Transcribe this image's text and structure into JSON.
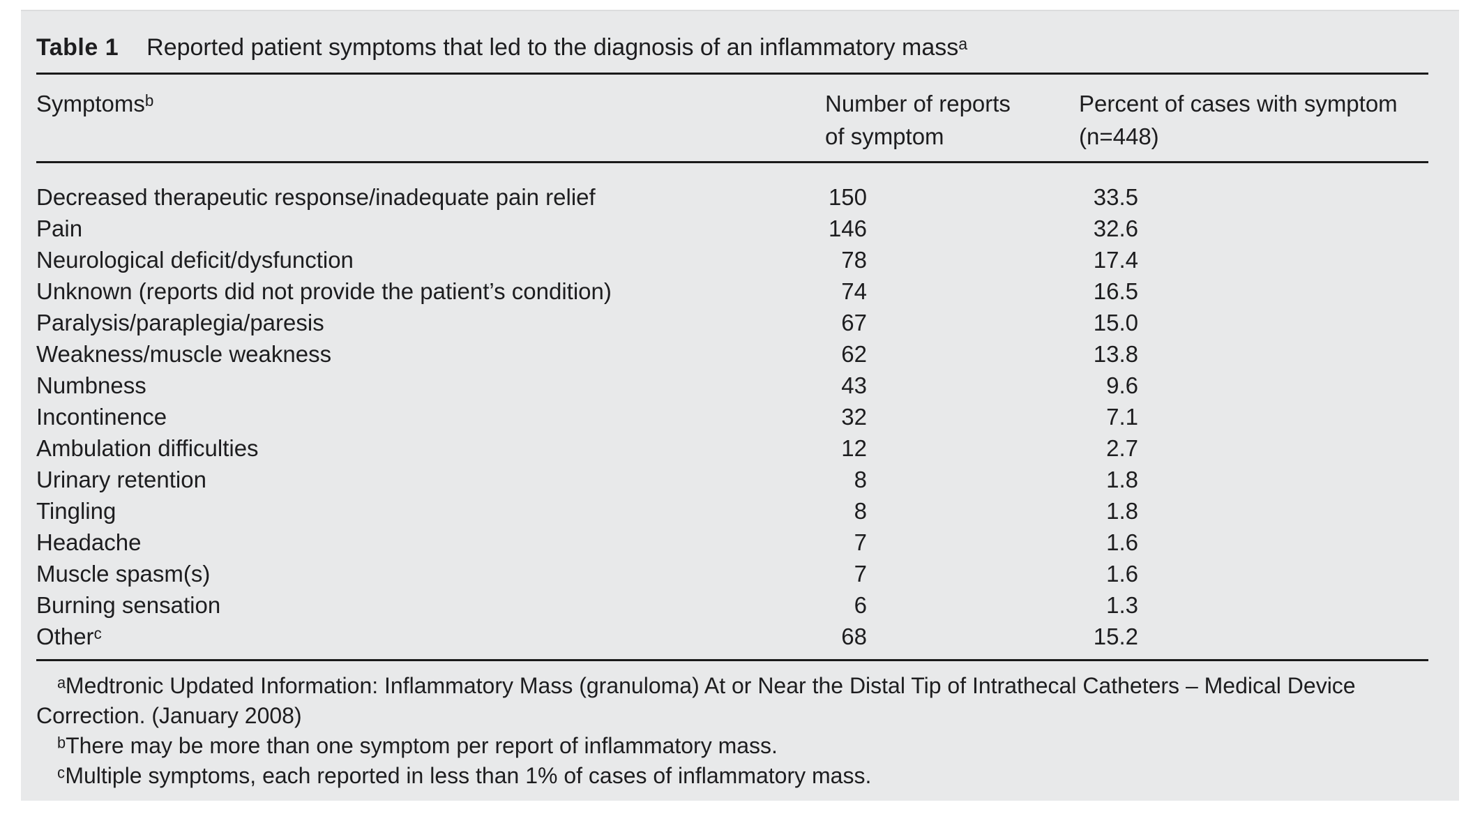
{
  "table": {
    "label": "Table 1",
    "title": "Reported patient symptoms that led to the diagnosis of an inflammatory massᵃ",
    "columns": {
      "symptom": "Symptomsᵇ",
      "count_line1": "Number of reports",
      "count_line2": "of symptom",
      "percent_line1": "Percent of cases with symptom",
      "percent_line2": "(n=448)"
    },
    "rows": [
      {
        "symptom": "Decreased therapeutic response/inadequate pain relief",
        "count": 150,
        "percent": "33.5"
      },
      {
        "symptom": "Pain",
        "count": 146,
        "percent": "32.6"
      },
      {
        "symptom": "Neurological deficit/dysfunction",
        "count": 78,
        "percent": "17.4"
      },
      {
        "symptom": "Unknown (reports did not provide the patient’s condition)",
        "count": 74,
        "percent": "16.5"
      },
      {
        "symptom": "Paralysis/paraplegia/paresis",
        "count": 67,
        "percent": "15.0"
      },
      {
        "symptom": "Weakness/muscle weakness",
        "count": 62,
        "percent": "13.8"
      },
      {
        "symptom": "Numbness",
        "count": 43,
        "percent": "9.6"
      },
      {
        "symptom": "Incontinence",
        "count": 32,
        "percent": "7.1"
      },
      {
        "symptom": "Ambulation difficulties",
        "count": 12,
        "percent": "2.7"
      },
      {
        "symptom": "Urinary retention",
        "count": 8,
        "percent": "1.8"
      },
      {
        "symptom": "Tingling",
        "count": 8,
        "percent": "1.8"
      },
      {
        "symptom": "Headache",
        "count": 7,
        "percent": "1.6"
      },
      {
        "symptom": "Muscle spasm(s)",
        "count": 7,
        "percent": "1.6"
      },
      {
        "symptom": "Burning sensation",
        "count": 6,
        "percent": "1.3"
      },
      {
        "symptom": "Otherᶜ",
        "count": 68,
        "percent": "15.2"
      }
    ],
    "footnotes": [
      "ᵃMedtronic Updated Information: Inflammatory Mass (granuloma) At or Near the Distal Tip of Intrathecal Catheters – Medical Device Correction. (January 2008)",
      "ᵇThere may be more than one symptom per report of inflammatory mass.",
      "ᶜMultiple symptoms, each reported in less than 1% of cases of inflammatory mass."
    ]
  },
  "colors": {
    "page_bg": "#ffffff",
    "panel_bg": "#e8e9ea",
    "text": "#1d1d1f",
    "rule": "#1a1a1a"
  }
}
